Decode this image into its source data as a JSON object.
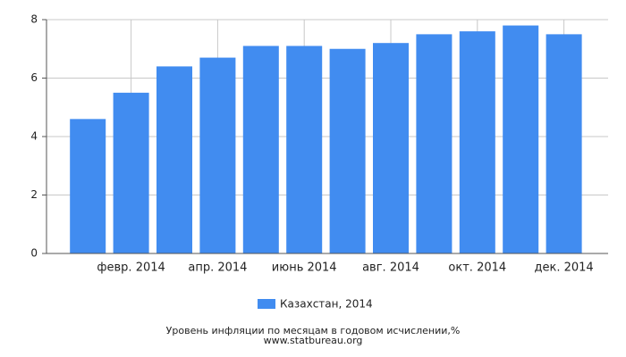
{
  "chart_data": {
    "type": "bar",
    "categories": [
      null,
      "февр. 2014",
      null,
      "апр. 2014",
      null,
      "июнь 2014",
      null,
      "авг. 2014",
      null,
      "окт. 2014",
      null,
      "дек. 2014"
    ],
    "series": [
      {
        "name": "Казахстан, 2014",
        "color": "#418cf0",
        "values": [
          4.6,
          5.5,
          6.4,
          6.7,
          7.1,
          7.1,
          7.0,
          7.2,
          7.5,
          7.6,
          7.8,
          7.5
        ]
      }
    ],
    "ylim": [
      0,
      8
    ],
    "yticks": [
      0,
      2,
      4,
      6,
      8
    ],
    "grid": true,
    "caption": "Уровень инфляции по месяцам в годовом исчислении,%",
    "source": "www.statbureau.org"
  }
}
